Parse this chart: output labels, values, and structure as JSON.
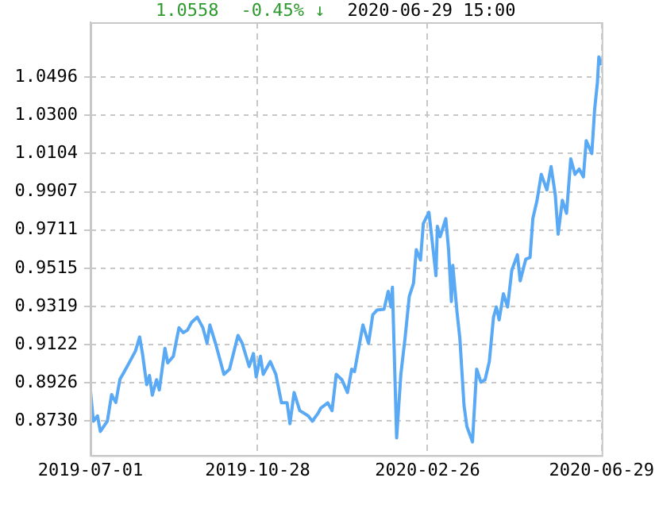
{
  "chart_data": {
    "type": "line",
    "annotations": [
      "1.0558",
      "-0.45% ↓",
      "2020-06-29 15:00"
    ],
    "x": [
      "2019-07-01",
      "2019-07-03",
      "2019-07-06",
      "2019-07-08",
      "2019-07-13",
      "2019-07-16",
      "2019-07-19",
      "2019-07-22",
      "2019-07-24",
      "2019-07-29",
      "2019-08-02",
      "2019-08-05",
      "2019-08-07",
      "2019-08-10",
      "2019-08-12",
      "2019-08-14",
      "2019-08-17",
      "2019-08-19",
      "2019-08-23",
      "2019-08-25",
      "2019-08-29",
      "2019-09-02",
      "2019-09-05",
      "2019-09-08",
      "2019-09-11",
      "2019-09-15",
      "2019-09-19",
      "2019-09-22",
      "2019-09-24",
      "2019-09-28",
      "2019-10-04",
      "2019-10-08",
      "2019-10-14",
      "2019-10-17",
      "2019-10-22",
      "2019-10-25",
      "2019-10-27",
      "2019-10-30",
      "2019-11-01",
      "2019-11-06",
      "2019-11-10",
      "2019-11-14",
      "2019-11-18",
      "2019-11-20",
      "2019-11-23",
      "2019-11-27",
      "2019-12-03",
      "2019-12-06",
      "2019-12-10",
      "2019-12-12",
      "2019-12-17",
      "2019-12-20",
      "2019-12-23",
      "2019-12-27",
      "2019-12-31",
      "2020-01-03",
      "2020-01-05",
      "2020-01-08",
      "2020-01-11",
      "2020-01-15",
      "2020-01-18",
      "2020-01-21",
      "2020-01-26",
      "2020-01-29",
      "2020-01-31",
      "2020-02-01",
      "2020-02-04",
      "2020-02-07",
      "2020-02-10",
      "2020-02-13",
      "2020-02-16",
      "2020-02-18",
      "2020-02-21",
      "2020-02-23",
      "2020-02-27",
      "2020-03-01",
      "2020-03-03",
      "2020-03-04",
      "2020-03-06",
      "2020-03-10",
      "2020-03-12",
      "2020-03-14",
      "2020-03-15",
      "2020-03-18",
      "2020-03-20",
      "2020-03-23",
      "2020-03-25",
      "2020-03-27",
      "2020-03-29",
      "2020-04-01",
      "2020-04-04",
      "2020-04-07",
      "2020-04-10",
      "2020-04-13",
      "2020-04-15",
      "2020-04-17",
      "2020-04-20",
      "2020-04-23",
      "2020-04-26",
      "2020-04-30",
      "2020-05-02",
      "2020-05-06",
      "2020-05-09",
      "2020-05-11",
      "2020-05-14",
      "2020-05-17",
      "2020-05-21",
      "2020-05-24",
      "2020-05-27",
      "2020-05-29",
      "2020-06-01",
      "2020-06-04",
      "2020-06-07",
      "2020-06-10",
      "2020-06-13",
      "2020-06-16",
      "2020-06-18",
      "2020-06-22",
      "2020-06-24",
      "2020-06-26",
      "2020-06-27",
      "2020-06-29"
    ],
    "series": [
      {
        "color": "#5aa9f5",
        "values": [
          0.8884,
          0.873,
          0.8757,
          0.8677,
          0.873,
          0.8866,
          0.8826,
          0.8946,
          0.897,
          0.9036,
          0.909,
          0.9162,
          0.9077,
          0.8917,
          0.8964,
          0.8863,
          0.8943,
          0.889,
          0.9104,
          0.9029,
          0.9063,
          0.921,
          0.9184,
          0.9197,
          0.9237,
          0.9264,
          0.921,
          0.913,
          0.9224,
          0.913,
          0.897,
          0.8997,
          0.917,
          0.913,
          0.901,
          0.9077,
          0.8957,
          0.9063,
          0.897,
          0.9036,
          0.897,
          0.8824,
          0.8824,
          0.8717,
          0.8877,
          0.8784,
          0.8757,
          0.873,
          0.877,
          0.8797,
          0.8824,
          0.8784,
          0.897,
          0.8943,
          0.8877,
          0.8997,
          0.8984,
          0.9104,
          0.9224,
          0.913,
          0.9276,
          0.93,
          0.9304,
          0.9396,
          0.9316,
          0.9418,
          0.8644,
          0.897,
          0.9157,
          0.937,
          0.9437,
          0.961,
          0.9557,
          0.9744,
          0.9802,
          0.961,
          0.9477,
          0.973,
          0.9677,
          0.977,
          0.961,
          0.9344,
          0.953,
          0.929,
          0.9157,
          0.881,
          0.8703,
          0.8663,
          0.8623,
          0.8997,
          0.893,
          0.8943,
          0.9036,
          0.9264,
          0.9316,
          0.925,
          0.9384,
          0.9316,
          0.9504,
          0.9584,
          0.945,
          0.9562,
          0.957,
          0.977,
          0.9864,
          0.9997,
          0.9917,
          1.0037,
          0.989,
          0.969,
          0.9864,
          0.9797,
          1.0077,
          0.9997,
          1.0024,
          0.9984,
          1.017,
          1.0104,
          1.033,
          1.047,
          1.06,
          1.0558
        ]
      }
    ],
    "xlim": [
      "2019-07-01",
      "2020-06-29"
    ],
    "xticks": [
      "2019-07-01",
      "2019-10-28",
      "2020-02-26",
      "2020-06-29"
    ],
    "ylim": [
      0.8554,
      1.0778
    ],
    "yticks": [
      {
        "value": 0.873,
        "label": "0.8730"
      },
      0.8926,
      0.9122,
      0.9319,
      0.9515,
      0.9711,
      0.9907,
      1.0104,
      {
        "value": 1.03,
        "label": "1.0300"
      },
      1.0496
    ],
    "grid": true,
    "marker": "none",
    "line_style": "solid"
  }
}
